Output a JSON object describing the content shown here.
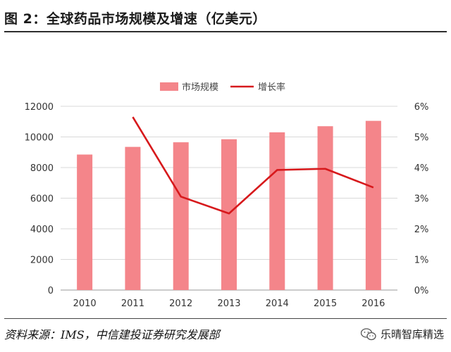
{
  "figure": {
    "title": "图 2：全球药品市场规模及增速（亿美元）",
    "source": "资料来源：IMS，中信建投证券研究发展部",
    "watermark": "乐晴智库精选",
    "watermark_icon": "wechat-icon"
  },
  "chart_data": {
    "type": "bar",
    "categories": [
      "2010",
      "2011",
      "2012",
      "2013",
      "2014",
      "2015",
      "2016"
    ],
    "series": [
      {
        "name": "市场规模",
        "type": "bar",
        "axis": "left",
        "color": "#F4858A",
        "values": [
          8850,
          9350,
          9650,
          9850,
          10300,
          10700,
          11050
        ]
      },
      {
        "name": "增长率",
        "type": "line",
        "axis": "right",
        "color": "#D7191C",
        "values": [
          null,
          5.65,
          3.05,
          2.5,
          3.92,
          3.96,
          3.35
        ]
      }
    ],
    "ylim": [
      0,
      12000
    ],
    "y_ticks": [
      "0",
      "2000",
      "4000",
      "6000",
      "8000",
      "10000",
      "12000"
    ],
    "y2lim": [
      0,
      6
    ],
    "y2_ticks": [
      "0%",
      "1%",
      "2%",
      "3%",
      "4%",
      "5%",
      "6%"
    ],
    "grid": true,
    "legend_position": "top-center"
  }
}
